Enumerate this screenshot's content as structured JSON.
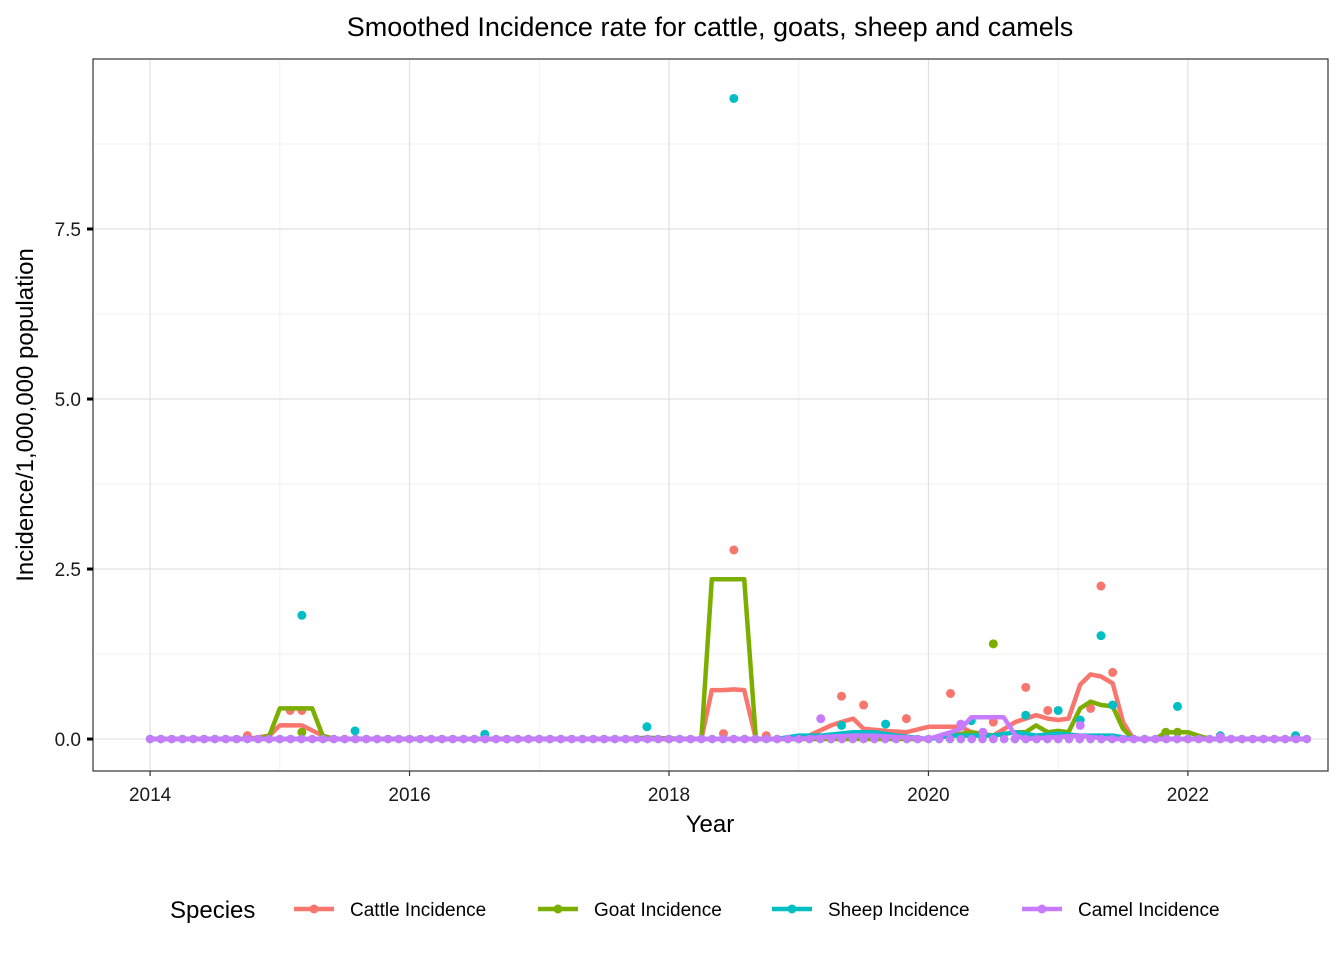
{
  "chart_data": {
    "type": "line",
    "title": "Smoothed Incidence rate for cattle, goats, sheep and camels",
    "xlabel": "Year",
    "ylabel": "Incidence/1,000,000 population",
    "xlim": [
      2013.56,
      2023.08
    ],
    "ylim": [
      -0.47,
      10.0
    ],
    "x_ticks": [
      2014,
      2016,
      2018,
      2020,
      2022
    ],
    "x_tick_labels": [
      "2014",
      "2016",
      "2018",
      "2020",
      "2022"
    ],
    "y_ticks": [
      0,
      2.5,
      5,
      7.5
    ],
    "y_tick_labels": [
      "0.0",
      "2.5",
      "5.0",
      "7.5"
    ],
    "grid": true,
    "legend": {
      "title": "Species",
      "position": "bottom",
      "entries": [
        "Cattle Incidence",
        "Goat Incidence",
        "Sheep Incidence",
        "Camel Incidence"
      ]
    },
    "colors": {
      "Cattle Incidence": "#F8766D",
      "Goat Incidence": "#7CAE00",
      "Sheep Incidence": "#00BFC4",
      "Camel Incidence": "#C77CFF"
    },
    "series": [
      {
        "name": "Cattle Incidence",
        "color": "#F8766D",
        "line": [
          [
            2014.0,
            0
          ],
          [
            2014.75,
            0
          ],
          [
            2014.92,
            0.05
          ],
          [
            2015.0,
            0.2
          ],
          [
            2015.17,
            0.2
          ],
          [
            2015.33,
            0.05
          ],
          [
            2015.42,
            0
          ],
          [
            2018.25,
            0
          ],
          [
            2018.33,
            0.72
          ],
          [
            2018.42,
            0.72
          ],
          [
            2018.5,
            0.73
          ],
          [
            2018.58,
            0.72
          ],
          [
            2018.67,
            0
          ],
          [
            2019.0,
            0
          ],
          [
            2019.08,
            0.05
          ],
          [
            2019.25,
            0.2
          ],
          [
            2019.33,
            0.25
          ],
          [
            2019.42,
            0.3
          ],
          [
            2019.5,
            0.15
          ],
          [
            2019.67,
            0.12
          ],
          [
            2019.83,
            0.1
          ],
          [
            2020.0,
            0.18
          ],
          [
            2020.25,
            0.18
          ],
          [
            2020.33,
            0.1
          ],
          [
            2020.5,
            0.05
          ],
          [
            2020.67,
            0.25
          ],
          [
            2020.83,
            0.35
          ],
          [
            2020.92,
            0.3
          ],
          [
            2021.0,
            0.28
          ],
          [
            2021.08,
            0.3
          ],
          [
            2021.17,
            0.8
          ],
          [
            2021.25,
            0.95
          ],
          [
            2021.33,
            0.92
          ],
          [
            2021.42,
            0.82
          ],
          [
            2021.5,
            0.25
          ],
          [
            2021.58,
            0
          ],
          [
            2022.92,
            0
          ]
        ],
        "points": [
          [
            2014.75,
            0.05
          ],
          [
            2015.08,
            0.42
          ],
          [
            2015.17,
            0.42
          ],
          [
            2018.42,
            0.08
          ],
          [
            2018.5,
            2.78
          ],
          [
            2018.75,
            0.05
          ],
          [
            2019.33,
            0.63
          ],
          [
            2019.5,
            0.5
          ],
          [
            2019.83,
            0.3
          ],
          [
            2020.17,
            0.67
          ],
          [
            2020.5,
            0.25
          ],
          [
            2020.75,
            0.76
          ],
          [
            2020.92,
            0.42
          ],
          [
            2021.25,
            0.45
          ],
          [
            2021.33,
            2.25
          ],
          [
            2021.42,
            0.98
          ]
        ]
      },
      {
        "name": "Goat Incidence",
        "color": "#7CAE00",
        "line": [
          [
            2014.0,
            0
          ],
          [
            2014.83,
            0
          ],
          [
            2014.92,
            0.05
          ],
          [
            2015.0,
            0.45
          ],
          [
            2015.25,
            0.45
          ],
          [
            2015.33,
            0.05
          ],
          [
            2015.42,
            0
          ],
          [
            2017.67,
            0
          ],
          [
            2017.83,
            0.02
          ],
          [
            2018.17,
            0
          ],
          [
            2018.25,
            0
          ],
          [
            2018.33,
            2.35
          ],
          [
            2018.58,
            2.35
          ],
          [
            2018.67,
            0
          ],
          [
            2020.0,
            0
          ],
          [
            2020.17,
            0.05
          ],
          [
            2020.33,
            0.1
          ],
          [
            2020.5,
            0.05
          ],
          [
            2020.67,
            0.1
          ],
          [
            2020.75,
            0.1
          ],
          [
            2020.83,
            0.2
          ],
          [
            2020.92,
            0.1
          ],
          [
            2021.0,
            0.12
          ],
          [
            2021.08,
            0.1
          ],
          [
            2021.17,
            0.45
          ],
          [
            2021.25,
            0.55
          ],
          [
            2021.33,
            0.5
          ],
          [
            2021.42,
            0.48
          ],
          [
            2021.5,
            0.15
          ],
          [
            2021.58,
            0
          ],
          [
            2021.75,
            0
          ],
          [
            2021.83,
            0.1
          ],
          [
            2022.0,
            0.1
          ],
          [
            2022.08,
            0.05
          ],
          [
            2022.17,
            0
          ],
          [
            2022.92,
            0
          ]
        ],
        "points": [
          [
            2015.17,
            0.1
          ],
          [
            2020.5,
            1.4
          ],
          [
            2021.83,
            0.1
          ],
          [
            2021.92,
            0.1
          ]
        ]
      },
      {
        "name": "Sheep Incidence",
        "color": "#00BFC4",
        "line": [
          [
            2014.0,
            0
          ],
          [
            2018.83,
            0
          ],
          [
            2019.0,
            0.05
          ],
          [
            2019.17,
            0.05
          ],
          [
            2019.42,
            0.1
          ],
          [
            2019.58,
            0.1
          ],
          [
            2019.75,
            0.05
          ],
          [
            2020.0,
            0
          ],
          [
            2020.17,
            0.05
          ],
          [
            2020.33,
            0.05
          ],
          [
            2020.5,
            0.05
          ],
          [
            2020.67,
            0.1
          ],
          [
            2020.83,
            0.05
          ],
          [
            2021.0,
            0.08
          ],
          [
            2021.17,
            0.05
          ],
          [
            2021.33,
            0.05
          ],
          [
            2021.42,
            0.05
          ],
          [
            2021.58,
            0
          ],
          [
            2022.92,
            0
          ]
        ],
        "points": [
          [
            2015.17,
            1.82
          ],
          [
            2015.58,
            0.12
          ],
          [
            2016.58,
            0.07
          ],
          [
            2017.83,
            0.18
          ],
          [
            2018.5,
            9.42
          ],
          [
            2019.33,
            0.2
          ],
          [
            2019.67,
            0.22
          ],
          [
            2020.33,
            0.27
          ],
          [
            2020.75,
            0.35
          ],
          [
            2021.0,
            0.42
          ],
          [
            2021.17,
            0.28
          ],
          [
            2021.33,
            1.52
          ],
          [
            2021.42,
            0.5
          ],
          [
            2021.92,
            0.48
          ],
          [
            2022.25,
            0.05
          ],
          [
            2022.83,
            0.05
          ]
        ]
      },
      {
        "name": "Camel Incidence",
        "color": "#C77CFF",
        "line": [
          [
            2014.0,
            0
          ],
          [
            2019.0,
            0
          ],
          [
            2019.17,
            0.03
          ],
          [
            2019.42,
            0.05
          ],
          [
            2019.58,
            0.05
          ],
          [
            2020.0,
            0
          ],
          [
            2020.17,
            0.1
          ],
          [
            2020.25,
            0.15
          ],
          [
            2020.33,
            0.32
          ],
          [
            2020.58,
            0.32
          ],
          [
            2020.67,
            0.05
          ],
          [
            2020.75,
            0
          ],
          [
            2021.17,
            0.05
          ],
          [
            2021.25,
            0.03
          ],
          [
            2021.42,
            0
          ],
          [
            2022.92,
            0
          ]
        ],
        "points": [
          [
            2019.17,
            0.3
          ],
          [
            2020.25,
            0.22
          ],
          [
            2020.42,
            0.1
          ],
          [
            2021.17,
            0.2
          ],
          [
            2022.25,
            0.03
          ]
        ]
      }
    ]
  }
}
